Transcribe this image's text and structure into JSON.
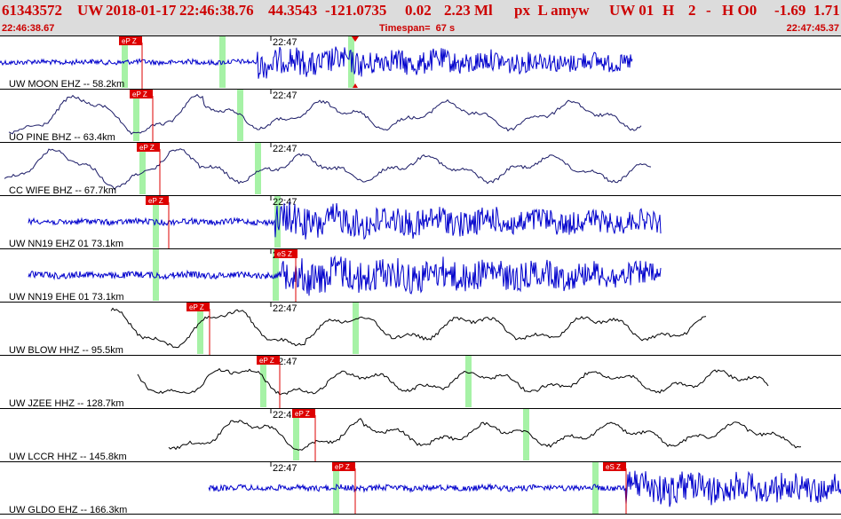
{
  "header": {
    "event_id": "61343572",
    "network": "UW",
    "date": "2018-01-17",
    "time": "22:46:38.76",
    "latitude": "44.3543",
    "longitude": "-121.0735",
    "depth": "0.02",
    "magnitude": "2.23 Ml",
    "flags": "px  L amyw",
    "source": "UW 01",
    "h_flag": "H",
    "h_num": "2",
    "dash": "-",
    "h_code": "H O0",
    "value1": "-1.69",
    "value2": "1.71",
    "start_time": "22:46:38.67",
    "timespan": "Timespan=  67 s",
    "end_time": "22:47:45.37"
  },
  "minute_label": "22:47",
  "colors": {
    "header_bg": "#dcdcdc",
    "header_text": "#cc0000",
    "trace_blue": "#0000cc",
    "trace_black": "#000000",
    "pick_red": "#dd0000",
    "window_green": "#a6f2a6"
  },
  "traces": [
    {
      "label": "UW MOON EHZ -- 58.2km",
      "color": "blue",
      "x_start": 0,
      "x_end": 712,
      "style": "hf",
      "amp": 0.38,
      "onset": 290,
      "greens": [
        140,
        250,
        395
      ],
      "picks": [
        {
          "label": "eP Z",
          "x": 158
        }
      ],
      "red_lines": [
        160
      ],
      "extra_marker": 400
    },
    {
      "label": "UO PINE BHZ -- 63.4km",
      "color": "black_blue",
      "x_start": 10,
      "x_end": 722,
      "style": "lf",
      "amp": 0.8,
      "onset": 0,
      "greens": [
        153,
        270
      ],
      "picks": [
        {
          "label": "eP Z",
          "x": 170
        }
      ],
      "red_lines": [
        172
      ]
    },
    {
      "label": "CC WIFE BHZ -- 67.7km",
      "color": "black_blue",
      "x_start": 5,
      "x_end": 733,
      "style": "lf",
      "amp": 0.75,
      "onset": 0,
      "greens": [
        160,
        290
      ],
      "picks": [
        {
          "label": "eP Z",
          "x": 178
        }
      ],
      "red_lines": [
        180
      ]
    },
    {
      "label": "UW NN19 EHZ 01 73.1km",
      "color": "blue",
      "x_start": 32,
      "x_end": 744,
      "style": "hf",
      "amp": 0.45,
      "onset": 310,
      "greens": [
        175,
        312
      ],
      "picks": [
        {
          "label": "eP Z",
          "x": 188
        }
      ],
      "red_lines": [
        190
      ]
    },
    {
      "label": "UW NN19 EHE 01 73.1km",
      "color": "blue",
      "x_start": 32,
      "x_end": 744,
      "style": "hf",
      "amp": 0.5,
      "onset": 318,
      "greens": [
        175,
        310
      ],
      "picks": [
        {
          "label": "eS Z",
          "x": 333
        }
      ],
      "red_lines": [
        333
      ]
    },
    {
      "label": "UW BLOW HHZ -- 95.5km",
      "color": "black",
      "x_start": 125,
      "x_end": 795,
      "style": "lf",
      "amp": 0.8,
      "onset": 0,
      "greens": [
        225,
        400
      ],
      "picks": [
        {
          "label": "eP Z",
          "x": 234
        }
      ],
      "red_lines": [
        236
      ]
    },
    {
      "label": "UW JZEE HHZ -- 128.7km",
      "color": "black",
      "x_start": 155,
      "x_end": 866,
      "style": "lf",
      "amp": 0.6,
      "onset": 0,
      "greens": [
        296,
        527
      ],
      "picks": [
        {
          "label": "eP Z",
          "x": 313
        }
      ],
      "red_lines": [
        315
      ]
    },
    {
      "label": "UW LCCR HHZ -- 145.8km",
      "color": "black",
      "x_start": 190,
      "x_end": 902,
      "style": "lf",
      "amp": 0.6,
      "onset": 0,
      "greens": [
        333,
        592
      ],
      "picks": [
        {
          "label": "eP Z",
          "x": 353
        }
      ],
      "red_lines": [
        355
      ]
    },
    {
      "label": "UW GLDO EHZ -- 166.3km",
      "color": "blue",
      "x_start": 235,
      "x_end": 947,
      "style": "hf",
      "amp": 0.45,
      "onset": 705,
      "greens": [
        378,
        670
      ],
      "picks": [
        {
          "label": "eP Z",
          "x": 398
        },
        {
          "label": "eS Z",
          "x": 703
        }
      ],
      "red_lines": [
        400,
        705
      ]
    }
  ]
}
